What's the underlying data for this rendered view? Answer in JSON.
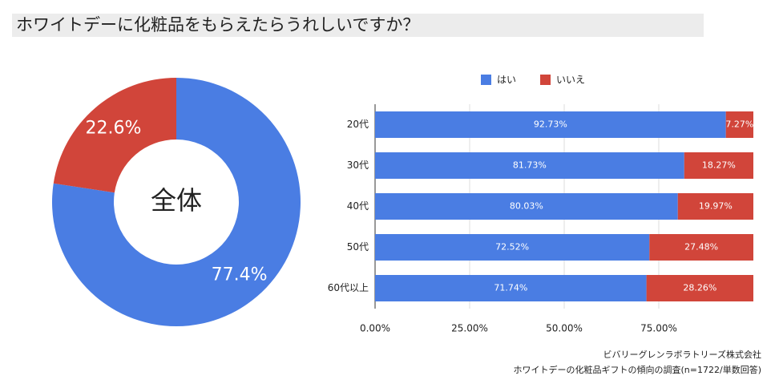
{
  "title": "ホワイトデーに化粧品をもらえたらうれしいですか？",
  "chart_data": [
    {
      "type": "pie",
      "center_label": "全体",
      "values": [
        77.4,
        22.6
      ],
      "value_labels": [
        "77.4%",
        "22.6%"
      ],
      "colors": [
        "#4a7de3",
        "#d1453a"
      ]
    },
    {
      "type": "bar",
      "orientation": "horizontal",
      "stacked": true,
      "categories": [
        "20代",
        "30代",
        "40代",
        "50代",
        "60代以上"
      ],
      "series": [
        {
          "name": "はい",
          "color": "#4a7de3",
          "values": [
            92.73,
            81.73,
            80.03,
            72.52,
            71.74
          ],
          "value_labels": [
            "92.73%",
            "81.73%",
            "80.03%",
            "72.52%",
            "71.74%"
          ]
        },
        {
          "name": "いいえ",
          "color": "#d1453a",
          "values": [
            7.27,
            18.27,
            19.97,
            27.48,
            28.26
          ],
          "value_labels": [
            "7.27%",
            "18.27%",
            "19.97%",
            "27.48%",
            "28.26%"
          ]
        }
      ],
      "xlim": [
        0,
        100
      ],
      "xticks": [
        {
          "value": 0,
          "label": "0.00%"
        },
        {
          "value": 25,
          "label": "25.00%"
        },
        {
          "value": 50,
          "label": "50.00%"
        },
        {
          "value": 75,
          "label": "75.00%"
        }
      ],
      "grid": true,
      "legend": "top"
    }
  ],
  "source": [
    "ビバリーグレンラボラトリーズ株式会社",
    "ホワイトデーの化粧品ギフトの傾向の調査(n=1722/単数回答)"
  ]
}
